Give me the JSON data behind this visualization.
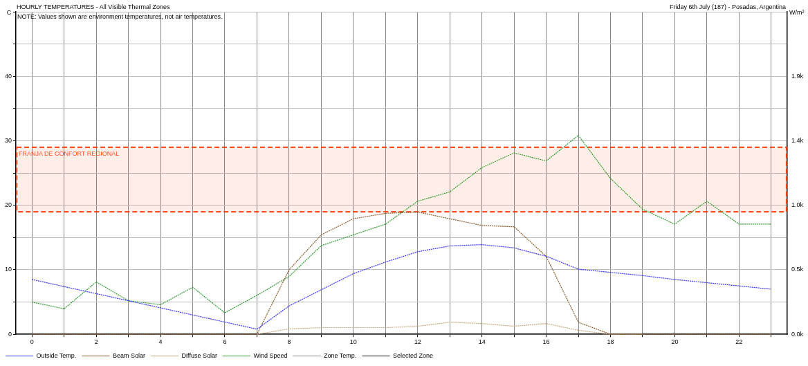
{
  "chart_data": {
    "type": "line",
    "title": "HOURLY TEMPERATURES - All Visible Thermal Zones",
    "subtitle": "Friday 6th July (187) - Posadas, Argentina",
    "ylabel": "C",
    "y2label": "W/m²",
    "annotations": [
      "NOTE: Values shown are environment temperatures, not air temperatures."
    ],
    "x": [
      0,
      1,
      2,
      3,
      4,
      5,
      6,
      7,
      8,
      9,
      10,
      11,
      12,
      13,
      14,
      15,
      16,
      17,
      18,
      19,
      20,
      21,
      22,
      23
    ],
    "xlim": [
      -0.5,
      23.5
    ],
    "xticks": [
      0,
      {
        "value": 1,
        "label": null
      },
      2,
      {
        "value": 3,
        "label": null
      },
      4,
      {
        "value": 5,
        "label": null
      },
      6,
      {
        "value": 7,
        "label": null
      },
      8,
      {
        "value": 9,
        "label": null
      },
      10,
      {
        "value": 11,
        "label": null
      },
      12,
      {
        "value": 13,
        "label": null
      },
      14,
      {
        "value": 15,
        "label": null
      },
      16,
      {
        "value": 17,
        "label": null
      },
      18,
      {
        "value": 19,
        "label": null
      },
      20,
      {
        "value": 21,
        "label": null
      },
      22,
      {
        "value": 23,
        "label": null
      }
    ],
    "ylim": [
      0,
      50
    ],
    "yticks": [
      0,
      {
        "value": 5,
        "label": null
      },
      10,
      {
        "value": 15,
        "label": null
      },
      20,
      {
        "value": 25,
        "label": null
      },
      30,
      {
        "value": 35,
        "label": null
      },
      40,
      {
        "value": 45,
        "label": null
      },
      {
        "value": 50,
        "label": null
      }
    ],
    "y2lim": [
      0,
      2.4
    ],
    "y2ticks": [
      {
        "value": 0,
        "label": "0.0k"
      },
      {
        "value": 0.24,
        "label": null
      },
      {
        "value": 0.48,
        "label": "0.5k"
      },
      {
        "value": 0.72,
        "label": null
      },
      {
        "value": 0.96,
        "label": "1.0k"
      },
      {
        "value": 1.2,
        "label": null
      },
      {
        "value": 1.44,
        "label": "1.4k"
      },
      {
        "value": 1.68,
        "label": null
      },
      {
        "value": 1.92,
        "label": "1.9k"
      },
      {
        "value": 2.16,
        "label": null
      },
      {
        "value": 2.4,
        "label": null
      }
    ],
    "series": [
      {
        "name": "Outside Temp.",
        "color": "#3333ff",
        "values": [
          8.5,
          7.4,
          6.3,
          5.2,
          4.1,
          3.0,
          1.9,
          0.8,
          4.4,
          6.9,
          9.4,
          11.2,
          12.8,
          13.7,
          13.9,
          13.4,
          12.1,
          10.1,
          9.6,
          9.1,
          8.5,
          8.0,
          7.5,
          7.0
        ]
      },
      {
        "name": "Beam Solar",
        "color": "#8b5a2b",
        "axis": "y2",
        "values": [
          0,
          0,
          0,
          0,
          0,
          0,
          0,
          0,
          0.48,
          0.74,
          0.86,
          0.9,
          0.91,
          0.86,
          0.81,
          0.8,
          0.58,
          0.09,
          0,
          0,
          0,
          0,
          0,
          0
        ]
      },
      {
        "name": "Diffuse Solar",
        "color": "#c8a882",
        "axis": "y2",
        "values": [
          null,
          null,
          null,
          null,
          null,
          null,
          null,
          0,
          0.04,
          0.05,
          0.05,
          0.05,
          0.06,
          0.09,
          0.08,
          0.06,
          0.08,
          0.03,
          0,
          0,
          null,
          null,
          null,
          null
        ]
      },
      {
        "name": "Wind Speed",
        "color": "#2e9a2e",
        "axis": "y2",
        "values": [
          0.24,
          0.19,
          0.39,
          0.25,
          0.22,
          0.35,
          0.16,
          0.29,
          0.43,
          0.66,
          0.74,
          0.82,
          0.99,
          1.06,
          1.24,
          1.35,
          1.29,
          1.48,
          1.16,
          0.93,
          0.82,
          0.99,
          0.82,
          0.82
        ]
      },
      {
        "name": "Zone Temp.",
        "color": "#808080",
        "values": [
          null,
          null,
          null,
          null,
          null,
          null,
          null,
          null,
          null,
          null,
          null,
          null,
          null,
          null,
          null,
          null,
          null,
          null,
          null,
          null,
          null,
          null,
          null,
          null
        ]
      },
      {
        "name": "Selected Zone",
        "color": "#000000",
        "values": [
          null,
          null,
          null,
          null,
          null,
          null,
          null,
          null,
          null,
          null,
          null,
          null,
          null,
          null,
          null,
          null,
          null,
          null,
          null,
          null,
          null,
          null,
          null,
          null
        ]
      }
    ],
    "bands": [
      {
        "axis": "y",
        "from": 19,
        "to": 29,
        "label": "FRANJA DE CONFORT REGIONAL",
        "color": "#ff3300"
      }
    ],
    "grid": true,
    "legend": "bottom",
    "marker": "none",
    "line_style": "dotted"
  }
}
